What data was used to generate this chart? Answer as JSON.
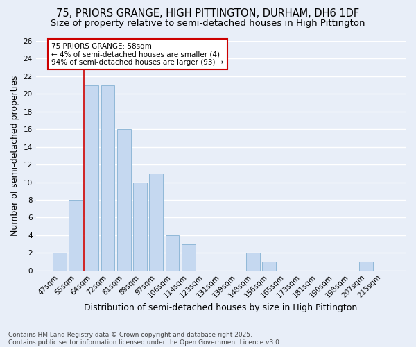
{
  "title1": "75, PRIORS GRANGE, HIGH PITTINGTON, DURHAM, DH6 1DF",
  "title2": "Size of property relative to semi-detached houses in High Pittington",
  "xlabel": "Distribution of semi-detached houses by size in High Pittington",
  "ylabel": "Number of semi-detached properties",
  "categories": [
    "47sqm",
    "55sqm",
    "64sqm",
    "72sqm",
    "81sqm",
    "89sqm",
    "97sqm",
    "106sqm",
    "114sqm",
    "123sqm",
    "131sqm",
    "139sqm",
    "148sqm",
    "156sqm",
    "165sqm",
    "173sqm",
    "181sqm",
    "190sqm",
    "198sqm",
    "207sqm",
    "215sqm"
  ],
  "values": [
    2,
    8,
    21,
    21,
    16,
    10,
    11,
    4,
    3,
    0,
    0,
    0,
    2,
    1,
    0,
    0,
    0,
    0,
    0,
    1,
    0
  ],
  "bar_color": "#c5d8f0",
  "bar_edge_color": "#90b8d8",
  "ylim": [
    0,
    26
  ],
  "yticks": [
    0,
    2,
    4,
    6,
    8,
    10,
    12,
    14,
    16,
    18,
    20,
    22,
    24,
    26
  ],
  "property_line_x": 1.5,
  "annotation_title": "75 PRIORS GRANGE: 58sqm",
  "annotation_line1": "← 4% of semi-detached houses are smaller (4)",
  "annotation_line2": "94% of semi-detached houses are larger (93) →",
  "annotation_box_color": "#ffffff",
  "annotation_box_edge_color": "#cc0000",
  "property_line_color": "#cc0000",
  "footer1": "Contains HM Land Registry data © Crown copyright and database right 2025.",
  "footer2": "Contains public sector information licensed under the Open Government Licence v3.0.",
  "background_color": "#e8eef8",
  "grid_color": "#ffffff",
  "title_fontsize": 10.5,
  "subtitle_fontsize": 9.5,
  "axis_label_fontsize": 9,
  "tick_fontsize": 7.5,
  "footer_fontsize": 6.5,
  "annot_fontsize": 7.5
}
